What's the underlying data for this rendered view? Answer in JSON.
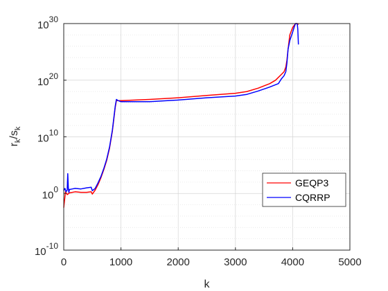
{
  "chart_data": {
    "type": "line",
    "xlabel": "k",
    "ylabel": {
      "base": "r",
      "base_sub": "k",
      "slash": "/s",
      "slash_sub": "k"
    },
    "xlim": [
      0,
      5000
    ],
    "ylim_exponent": [
      -10,
      30
    ],
    "yscale": "log",
    "grid": true,
    "legend_position": "lower-right",
    "x_ticks": [
      "0",
      "1000",
      "2000",
      "3000",
      "4000",
      "5000"
    ],
    "y_ticks": [
      {
        "exp": -10,
        "base": "10",
        "sup": "-10"
      },
      {
        "exp": 0,
        "base": "10",
        "sup": "0"
      },
      {
        "exp": 10,
        "base": "10",
        "sup": "10"
      },
      {
        "exp": 20,
        "base": "10",
        "sup": "20"
      },
      {
        "exp": 30,
        "base": "10",
        "sup": "30"
      }
    ],
    "series": [
      {
        "name": "GEQP3",
        "color": "#ff0000",
        "x": [
          0,
          30,
          60,
          100,
          200,
          300,
          400,
          480,
          500,
          550,
          600,
          650,
          700,
          750,
          800,
          850,
          900,
          920,
          950,
          1000,
          1500,
          2000,
          2500,
          3000,
          3200,
          3400,
          3600,
          3700,
          3750,
          3800,
          3850,
          3880,
          3900,
          3920,
          3950,
          4000,
          4050,
          4080,
          4100
        ],
        "y_exp": [
          -2.5,
          0.3,
          -0.2,
          0.1,
          0.3,
          0.2,
          0.2,
          0.3,
          -0.1,
          0.6,
          1.6,
          2.8,
          4.2,
          5.8,
          8.0,
          11.0,
          15.2,
          16.4,
          16.4,
          16.4,
          16.6,
          16.9,
          17.3,
          17.7,
          18.0,
          18.6,
          19.4,
          20.0,
          20.5,
          21.0,
          21.5,
          22.3,
          23.5,
          25.5,
          28.0,
          29.3,
          30.5,
          32.5,
          29.8
        ]
      },
      {
        "name": "CQRRP",
        "color": "#0000ff",
        "x": [
          0,
          20,
          40,
          60,
          70,
          80,
          90,
          100,
          150,
          200,
          300,
          400,
          480,
          500,
          550,
          600,
          650,
          700,
          750,
          800,
          850,
          900,
          920,
          950,
          1000,
          1500,
          2000,
          2500,
          3000,
          3200,
          3400,
          3600,
          3700,
          3750,
          3800,
          3850,
          3880,
          3900,
          3920,
          3950,
          4000,
          4030,
          4050,
          4080,
          4090,
          4100
        ],
        "y_exp": [
          0.5,
          0.9,
          0.3,
          0.6,
          3.5,
          1.0,
          0.2,
          0.7,
          0.8,
          0.9,
          0.8,
          1.0,
          1.1,
          0.5,
          0.9,
          1.9,
          3.0,
          4.4,
          6.0,
          8.2,
          11.2,
          15.4,
          16.6,
          16.4,
          16.2,
          16.2,
          16.5,
          16.9,
          17.2,
          17.5,
          18.1,
          18.8,
          19.2,
          19.4,
          20.2,
          20.8,
          21.5,
          23.0,
          25.5,
          27.0,
          28.5,
          29.5,
          30.3,
          31.0,
          29.0,
          26.3
        ]
      }
    ]
  }
}
